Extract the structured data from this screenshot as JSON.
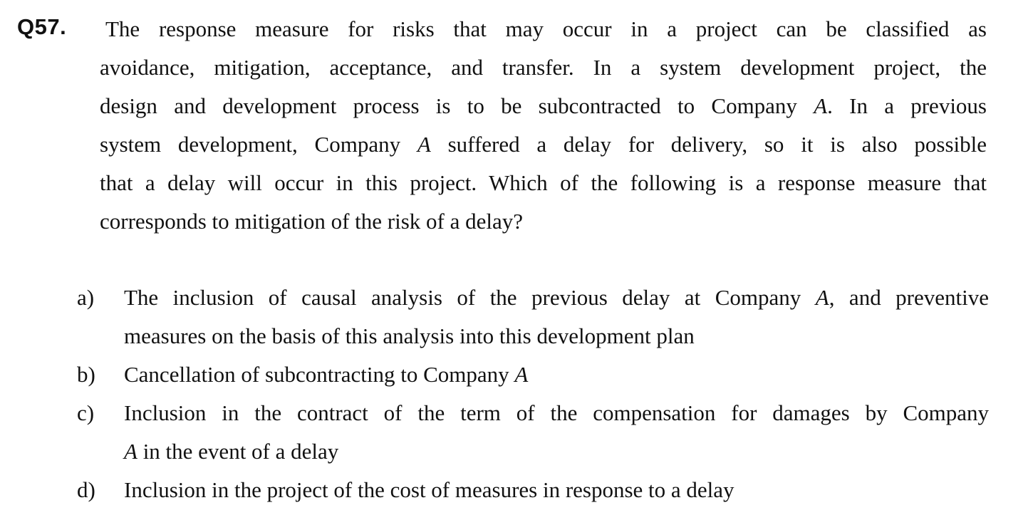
{
  "question": {
    "number": "Q57.",
    "stem_lines": [
      "The response measure for risks that may occur in a project can be classified as",
      "avoidance, mitigation, acceptance, and transfer. In a system development project, the",
      "design and development process is to be subcontracted to Company A. In a previous",
      "system development, Company A suffered a delay for delivery, so it is also possible",
      "that a delay will occur in this project. Which of the following is a response measure that",
      "corresponds to mitigation of the risk of a delay?"
    ],
    "options": [
      {
        "label": "a)",
        "lines": [
          "The inclusion of causal analysis of the previous delay at Company A, and preventive",
          "measures on the basis of this analysis into this development plan"
        ]
      },
      {
        "label": "b)",
        "lines": [
          "Cancellation of subcontracting to Company A"
        ]
      },
      {
        "label": "c)",
        "lines": [
          "Inclusion in the contract of the term of the compensation for damages by Company",
          "A in the event of a delay"
        ]
      },
      {
        "label": "d)",
        "lines": [
          "Inclusion in the project of the cost of measures in response to a delay"
        ]
      }
    ]
  }
}
